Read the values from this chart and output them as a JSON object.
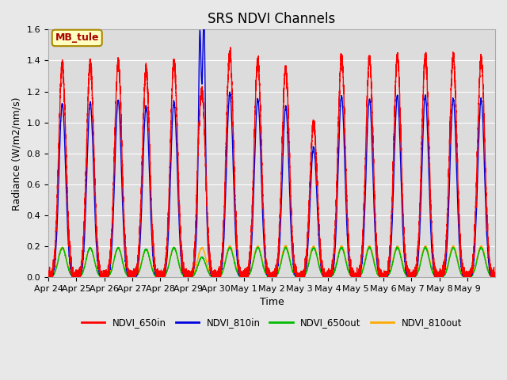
{
  "title": "SRS NDVI Channels",
  "xlabel": "Time",
  "ylabel": "Radiance (W/m2/nm/s)",
  "ylim": [
    0.0,
    1.6
  ],
  "xtick_labels": [
    "Apr 24",
    "Apr 25",
    "Apr 26",
    "Apr 27",
    "Apr 28",
    "Apr 29",
    "Apr 30",
    "May 1",
    "May 2",
    "May 3",
    "May 4",
    "May 5",
    "May 6",
    "May 7",
    "May 8",
    "May 9"
  ],
  "annotation_text": "MB_tule",
  "annotation_color": "#aa0000",
  "annotation_bg": "#ffffc0",
  "annotation_border": "#aa8800",
  "line_colors": {
    "NDVI_650in": "#ff0000",
    "NDVI_810in": "#0000dd",
    "NDVI_650out": "#00bb00",
    "NDVI_810out": "#ffaa00"
  },
  "legend_labels": [
    "NDVI_650in",
    "NDVI_810in",
    "NDVI_650out",
    "NDVI_810out"
  ],
  "fig_bg_color": "#e8e8e8",
  "plot_bg_color": "#dcdcdc",
  "title_fontsize": 12,
  "label_fontsize": 9,
  "tick_fontsize": 8,
  "spike_peaks_650in": [
    1.38,
    1.38,
    1.39,
    1.34,
    1.39,
    1.2,
    1.45,
    1.4,
    1.35,
    1.0,
    1.42,
    1.41,
    1.42,
    1.43,
    1.43,
    1.41
  ],
  "spike_peaks_810in": [
    1.12,
    1.13,
    1.14,
    1.1,
    1.13,
    1.03,
    1.19,
    1.15,
    1.1,
    0.84,
    1.17,
    1.15,
    1.17,
    1.17,
    1.15,
    1.15
  ],
  "spike_peaks_650out": [
    0.19,
    0.19,
    0.19,
    0.18,
    0.19,
    0.13,
    0.19,
    0.19,
    0.19,
    0.19,
    0.19,
    0.19,
    0.19,
    0.19,
    0.19,
    0.19
  ],
  "spike_peaks_810out": [
    0.19,
    0.19,
    0.19,
    0.18,
    0.19,
    0.19,
    0.2,
    0.2,
    0.2,
    0.2,
    0.2,
    0.2,
    0.2,
    0.2,
    0.2,
    0.2
  ],
  "num_days": 16,
  "points_per_day": 500
}
